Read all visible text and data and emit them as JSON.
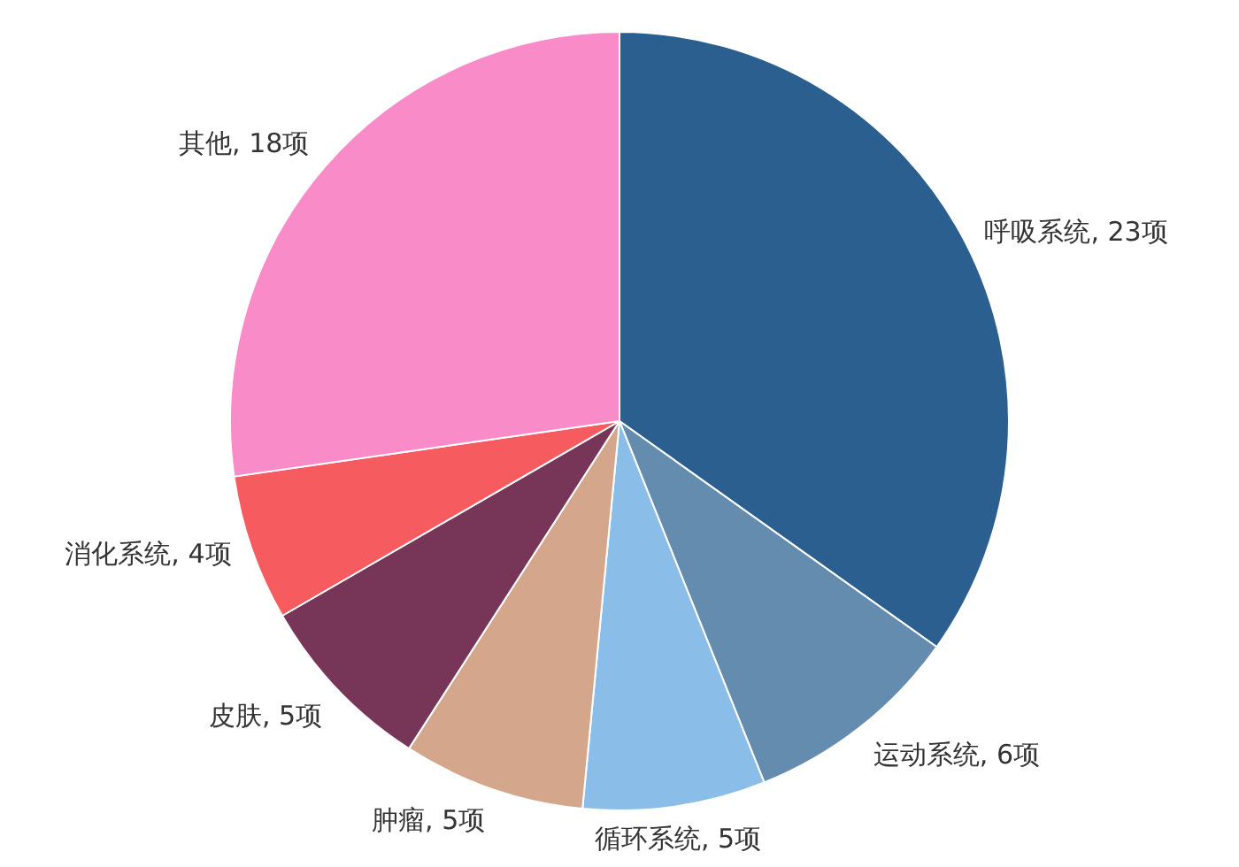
{
  "chart_data": {
    "type": "pie",
    "categories": [
      "呼吸系统",
      "运动系统",
      "循环系统",
      "肿瘤",
      "皮肤",
      "消化系统",
      "其他"
    ],
    "values": [
      23,
      6,
      5,
      5,
      5,
      4,
      18
    ],
    "value_labels": [
      "23项",
      "6项",
      "5项",
      "5项",
      "5项",
      "4项",
      "18项"
    ],
    "colors": [
      "#2a5f8f",
      "#648caf",
      "#8bbde9",
      "#d4a78c",
      "#773558",
      "#f65b60",
      "#f98bc9"
    ]
  }
}
